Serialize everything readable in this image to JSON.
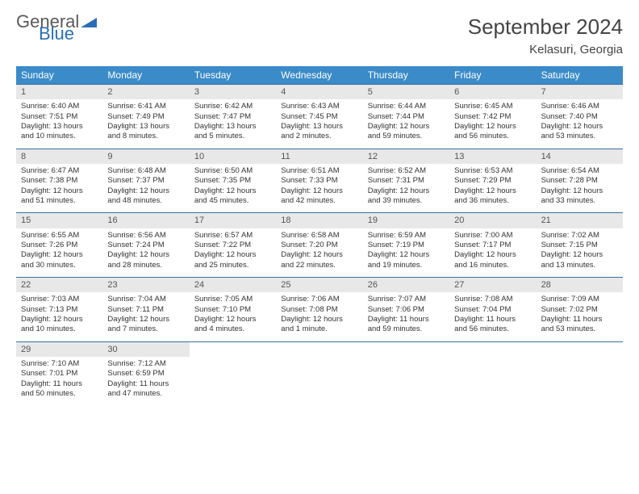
{
  "logo": {
    "general": "General",
    "blue": "Blue"
  },
  "title": "September 2024",
  "location": "Kelasuri, Georgia",
  "colors": {
    "header_bg": "#3b8bc9",
    "header_text": "#ffffff",
    "week_border": "#3b6fa0",
    "daynum_bg": "#e8e8e8",
    "text": "#333333",
    "logo_gray": "#5a5a5a",
    "logo_blue": "#2a6fb5"
  },
  "dayNames": [
    "Sunday",
    "Monday",
    "Tuesday",
    "Wednesday",
    "Thursday",
    "Friday",
    "Saturday"
  ],
  "weeks": [
    [
      {
        "n": "1",
        "sr": "Sunrise: 6:40 AM",
        "ss": "Sunset: 7:51 PM",
        "d1": "Daylight: 13 hours",
        "d2": "and 10 minutes."
      },
      {
        "n": "2",
        "sr": "Sunrise: 6:41 AM",
        "ss": "Sunset: 7:49 PM",
        "d1": "Daylight: 13 hours",
        "d2": "and 8 minutes."
      },
      {
        "n": "3",
        "sr": "Sunrise: 6:42 AM",
        "ss": "Sunset: 7:47 PM",
        "d1": "Daylight: 13 hours",
        "d2": "and 5 minutes."
      },
      {
        "n": "4",
        "sr": "Sunrise: 6:43 AM",
        "ss": "Sunset: 7:45 PM",
        "d1": "Daylight: 13 hours",
        "d2": "and 2 minutes."
      },
      {
        "n": "5",
        "sr": "Sunrise: 6:44 AM",
        "ss": "Sunset: 7:44 PM",
        "d1": "Daylight: 12 hours",
        "d2": "and 59 minutes."
      },
      {
        "n": "6",
        "sr": "Sunrise: 6:45 AM",
        "ss": "Sunset: 7:42 PM",
        "d1": "Daylight: 12 hours",
        "d2": "and 56 minutes."
      },
      {
        "n": "7",
        "sr": "Sunrise: 6:46 AM",
        "ss": "Sunset: 7:40 PM",
        "d1": "Daylight: 12 hours",
        "d2": "and 53 minutes."
      }
    ],
    [
      {
        "n": "8",
        "sr": "Sunrise: 6:47 AM",
        "ss": "Sunset: 7:38 PM",
        "d1": "Daylight: 12 hours",
        "d2": "and 51 minutes."
      },
      {
        "n": "9",
        "sr": "Sunrise: 6:48 AM",
        "ss": "Sunset: 7:37 PM",
        "d1": "Daylight: 12 hours",
        "d2": "and 48 minutes."
      },
      {
        "n": "10",
        "sr": "Sunrise: 6:50 AM",
        "ss": "Sunset: 7:35 PM",
        "d1": "Daylight: 12 hours",
        "d2": "and 45 minutes."
      },
      {
        "n": "11",
        "sr": "Sunrise: 6:51 AM",
        "ss": "Sunset: 7:33 PM",
        "d1": "Daylight: 12 hours",
        "d2": "and 42 minutes."
      },
      {
        "n": "12",
        "sr": "Sunrise: 6:52 AM",
        "ss": "Sunset: 7:31 PM",
        "d1": "Daylight: 12 hours",
        "d2": "and 39 minutes."
      },
      {
        "n": "13",
        "sr": "Sunrise: 6:53 AM",
        "ss": "Sunset: 7:29 PM",
        "d1": "Daylight: 12 hours",
        "d2": "and 36 minutes."
      },
      {
        "n": "14",
        "sr": "Sunrise: 6:54 AM",
        "ss": "Sunset: 7:28 PM",
        "d1": "Daylight: 12 hours",
        "d2": "and 33 minutes."
      }
    ],
    [
      {
        "n": "15",
        "sr": "Sunrise: 6:55 AM",
        "ss": "Sunset: 7:26 PM",
        "d1": "Daylight: 12 hours",
        "d2": "and 30 minutes."
      },
      {
        "n": "16",
        "sr": "Sunrise: 6:56 AM",
        "ss": "Sunset: 7:24 PM",
        "d1": "Daylight: 12 hours",
        "d2": "and 28 minutes."
      },
      {
        "n": "17",
        "sr": "Sunrise: 6:57 AM",
        "ss": "Sunset: 7:22 PM",
        "d1": "Daylight: 12 hours",
        "d2": "and 25 minutes."
      },
      {
        "n": "18",
        "sr": "Sunrise: 6:58 AM",
        "ss": "Sunset: 7:20 PM",
        "d1": "Daylight: 12 hours",
        "d2": "and 22 minutes."
      },
      {
        "n": "19",
        "sr": "Sunrise: 6:59 AM",
        "ss": "Sunset: 7:19 PM",
        "d1": "Daylight: 12 hours",
        "d2": "and 19 minutes."
      },
      {
        "n": "20",
        "sr": "Sunrise: 7:00 AM",
        "ss": "Sunset: 7:17 PM",
        "d1": "Daylight: 12 hours",
        "d2": "and 16 minutes."
      },
      {
        "n": "21",
        "sr": "Sunrise: 7:02 AM",
        "ss": "Sunset: 7:15 PM",
        "d1": "Daylight: 12 hours",
        "d2": "and 13 minutes."
      }
    ],
    [
      {
        "n": "22",
        "sr": "Sunrise: 7:03 AM",
        "ss": "Sunset: 7:13 PM",
        "d1": "Daylight: 12 hours",
        "d2": "and 10 minutes."
      },
      {
        "n": "23",
        "sr": "Sunrise: 7:04 AM",
        "ss": "Sunset: 7:11 PM",
        "d1": "Daylight: 12 hours",
        "d2": "and 7 minutes."
      },
      {
        "n": "24",
        "sr": "Sunrise: 7:05 AM",
        "ss": "Sunset: 7:10 PM",
        "d1": "Daylight: 12 hours",
        "d2": "and 4 minutes."
      },
      {
        "n": "25",
        "sr": "Sunrise: 7:06 AM",
        "ss": "Sunset: 7:08 PM",
        "d1": "Daylight: 12 hours",
        "d2": "and 1 minute."
      },
      {
        "n": "26",
        "sr": "Sunrise: 7:07 AM",
        "ss": "Sunset: 7:06 PM",
        "d1": "Daylight: 11 hours",
        "d2": "and 59 minutes."
      },
      {
        "n": "27",
        "sr": "Sunrise: 7:08 AM",
        "ss": "Sunset: 7:04 PM",
        "d1": "Daylight: 11 hours",
        "d2": "and 56 minutes."
      },
      {
        "n": "28",
        "sr": "Sunrise: 7:09 AM",
        "ss": "Sunset: 7:02 PM",
        "d1": "Daylight: 11 hours",
        "d2": "and 53 minutes."
      }
    ],
    [
      {
        "n": "29",
        "sr": "Sunrise: 7:10 AM",
        "ss": "Sunset: 7:01 PM",
        "d1": "Daylight: 11 hours",
        "d2": "and 50 minutes."
      },
      {
        "n": "30",
        "sr": "Sunrise: 7:12 AM",
        "ss": "Sunset: 6:59 PM",
        "d1": "Daylight: 11 hours",
        "d2": "and 47 minutes."
      },
      {
        "empty": true
      },
      {
        "empty": true
      },
      {
        "empty": true
      },
      {
        "empty": true
      },
      {
        "empty": true
      }
    ]
  ]
}
